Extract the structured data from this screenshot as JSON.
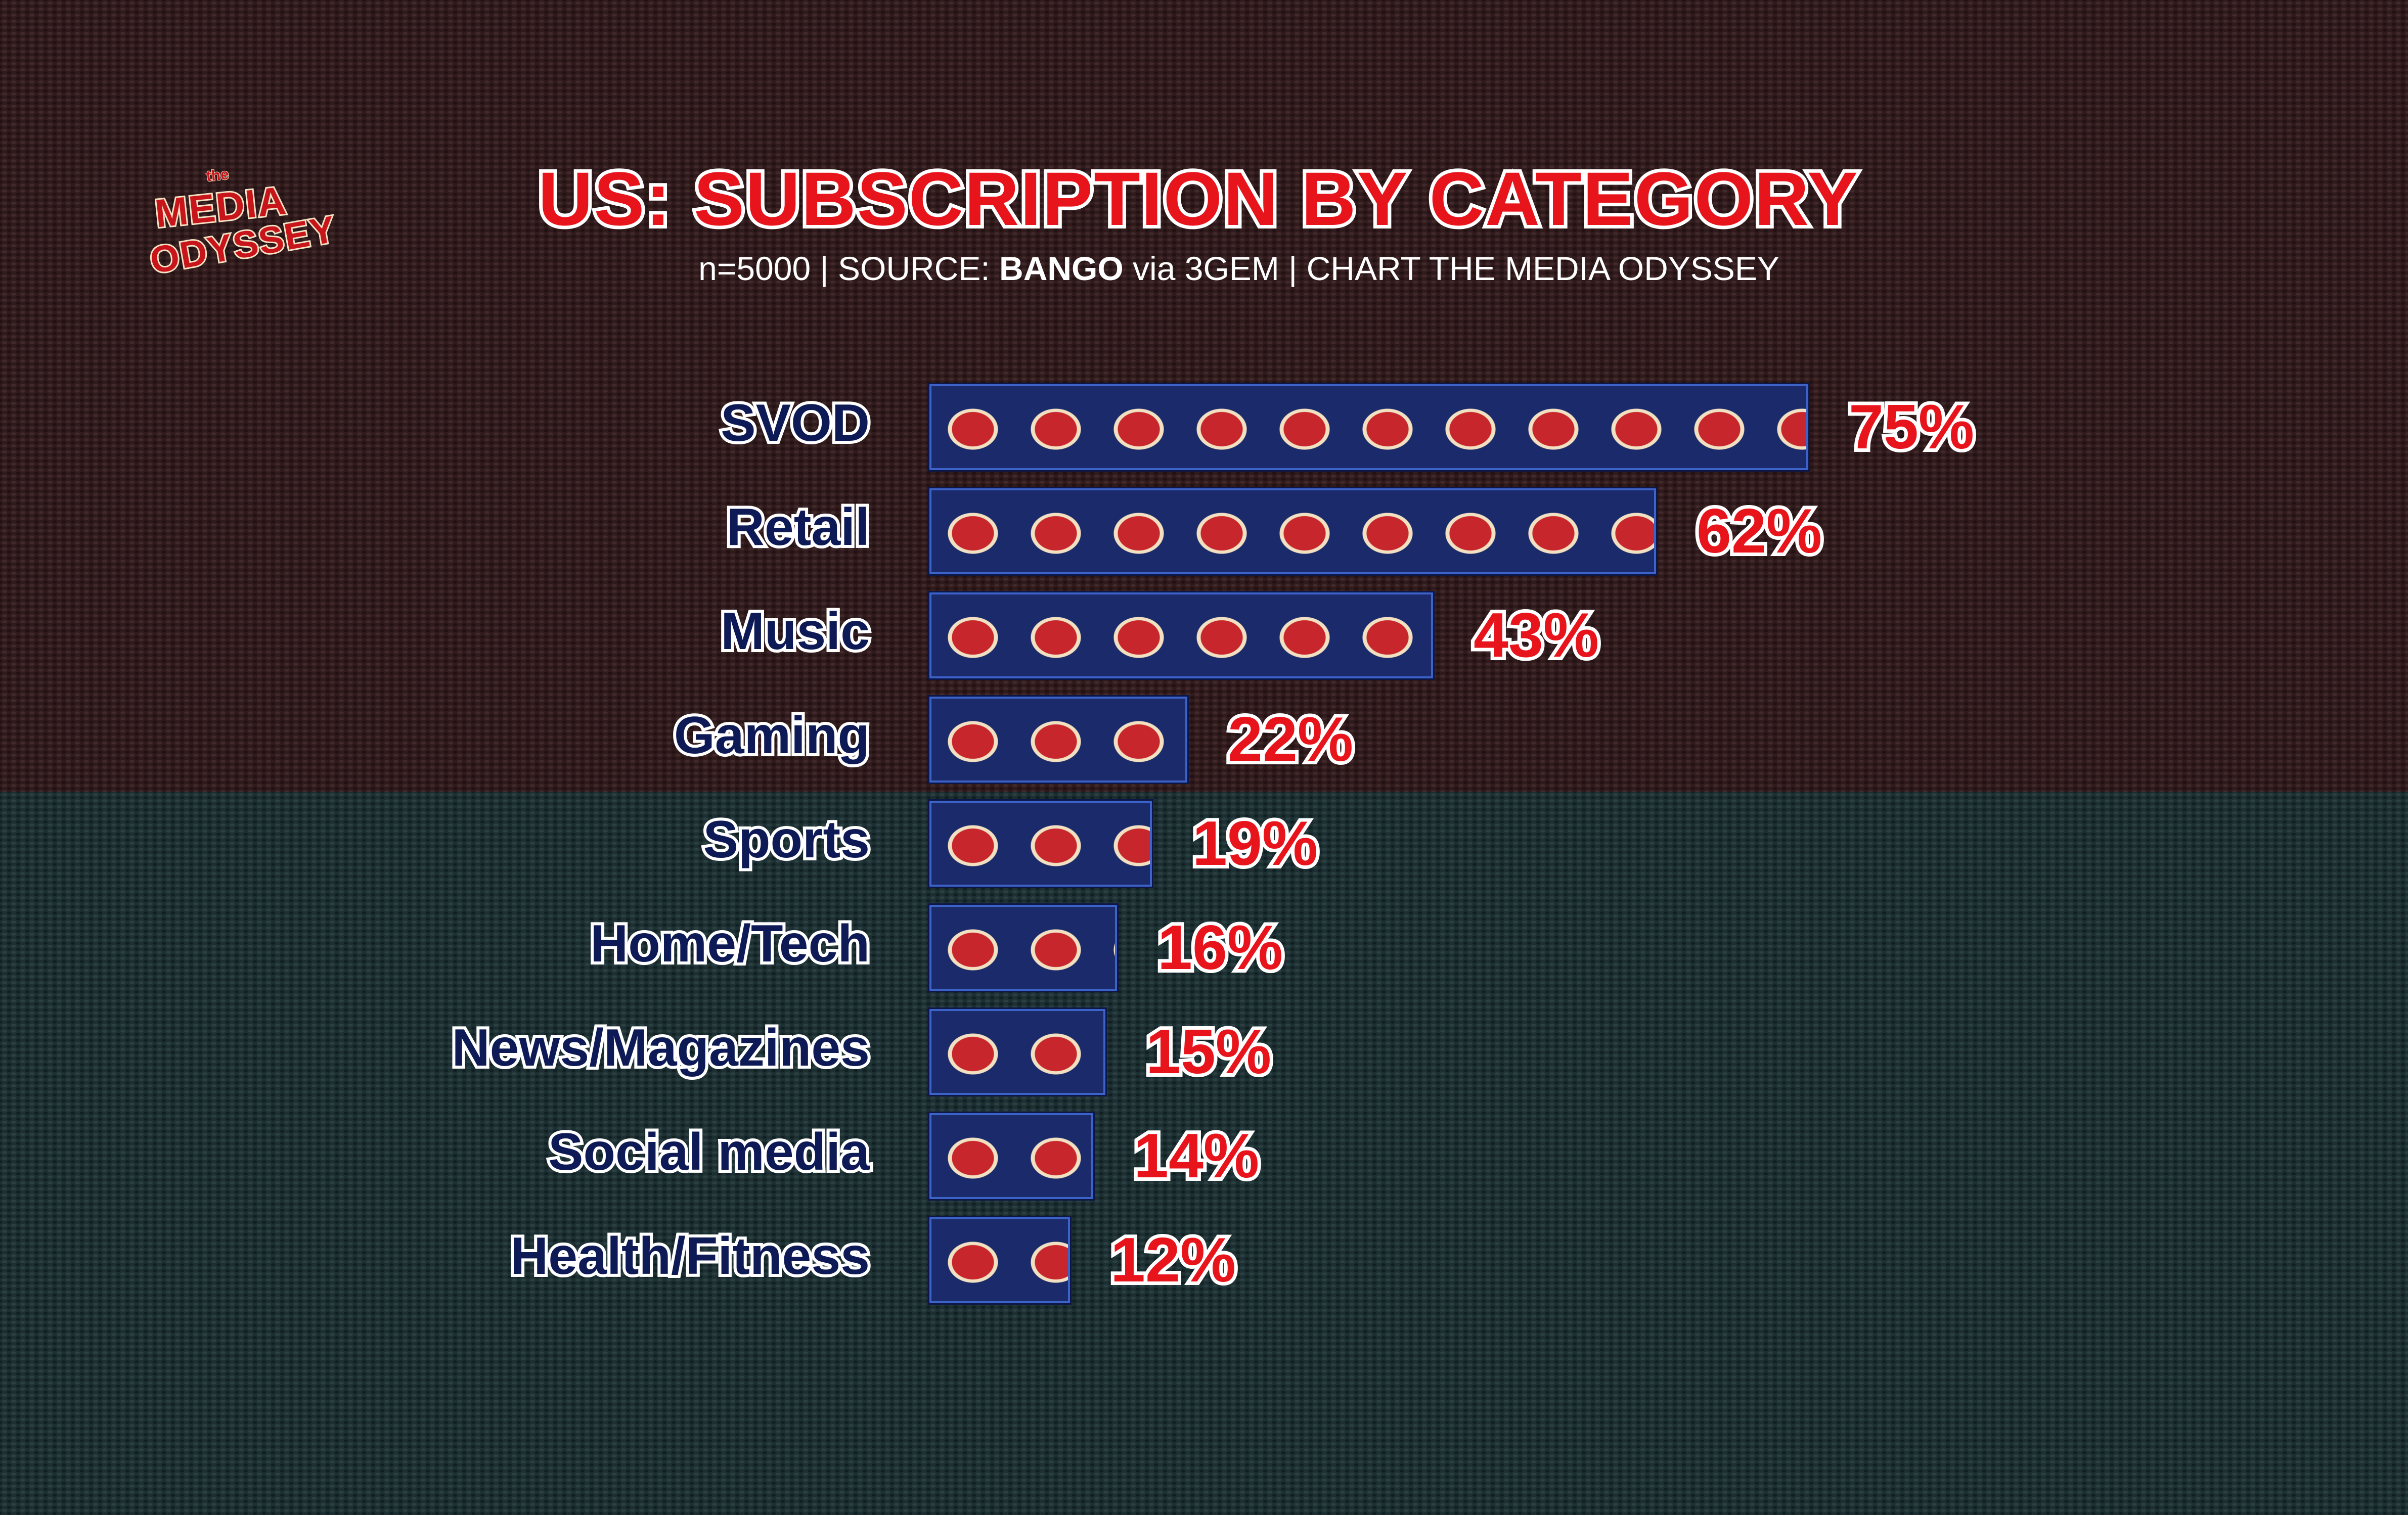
{
  "logo": {
    "small": "the",
    "line1": "MEDIA",
    "line2": "ODYSSEY"
  },
  "header": {
    "title": "US: SUBSCRIPTION BY CATEGORY",
    "subtitle_prefix": "n=5000 | SOURCE: ",
    "subtitle_bold": "BANGO",
    "subtitle_suffix": " via 3GEM | CHART THE MEDIA ODYSSEY"
  },
  "colors": {
    "bar_fill": "#1b2a6a",
    "bar_border": "#3d62c8",
    "value_label": "#e8141c",
    "category_label": "#0d1a55",
    "bg_top": "#311a1c",
    "bg_bottom": "#1c3033"
  },
  "chart_data": {
    "type": "bar",
    "orientation": "horizontal",
    "title": "US: SUBSCRIPTION BY CATEGORY",
    "categories": [
      "SVOD",
      "Retail",
      "Music",
      "Gaming",
      "Sports",
      "Home/Tech",
      "News/Magazines",
      "Social media",
      "Health/Fitness"
    ],
    "values": [
      75,
      62,
      43,
      22,
      19,
      16,
      15,
      14,
      12
    ],
    "value_labels": [
      "75%",
      "62%",
      "43%",
      "22%",
      "19%",
      "16%",
      "15%",
      "14%",
      "12%"
    ],
    "grid": false,
    "legend": "none"
  }
}
